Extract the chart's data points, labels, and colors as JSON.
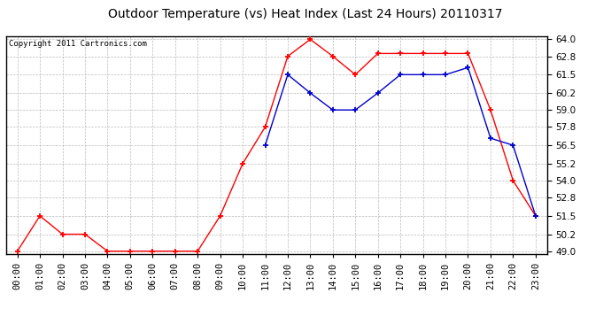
{
  "title": "Outdoor Temperature (vs) Heat Index (Last 24 Hours) 20110317",
  "copyright_text": "Copyright 2011 Cartronics.com",
  "x_labels": [
    "00:00",
    "01:00",
    "02:00",
    "03:00",
    "04:00",
    "05:00",
    "06:00",
    "07:00",
    "08:00",
    "09:00",
    "10:00",
    "11:00",
    "12:00",
    "13:00",
    "14:00",
    "15:00",
    "16:00",
    "17:00",
    "18:00",
    "19:00",
    "20:00",
    "21:00",
    "22:00",
    "23:00"
  ],
  "red_data": [
    49.0,
    51.5,
    50.2,
    50.2,
    49.0,
    49.0,
    49.0,
    49.0,
    49.0,
    51.5,
    55.2,
    57.8,
    62.8,
    64.0,
    62.8,
    61.5,
    63.0,
    63.0,
    63.0,
    63.0,
    63.0,
    59.0,
    54.0,
    51.5
  ],
  "blue_data": [
    null,
    null,
    null,
    null,
    null,
    null,
    null,
    null,
    null,
    null,
    null,
    56.5,
    61.5,
    60.2,
    59.0,
    59.0,
    60.2,
    61.5,
    61.5,
    61.5,
    62.0,
    57.0,
    56.5,
    51.5
  ],
  "ylim_min": 49.0,
  "ylim_max": 64.0,
  "yticks": [
    49.0,
    50.2,
    51.5,
    52.8,
    54.0,
    55.2,
    56.5,
    57.8,
    59.0,
    60.2,
    61.5,
    62.8,
    64.0
  ],
  "red_color": "#ff0000",
  "blue_color": "#0000cc",
  "background_color": "#ffffff",
  "plot_bg_color": "#ffffff",
  "grid_color": "#bbbbbb",
  "title_fontsize": 10,
  "copyright_fontsize": 6.5,
  "tick_fontsize": 7.5
}
